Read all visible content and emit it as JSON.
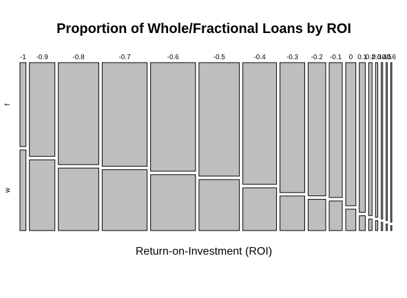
{
  "chart_data": {
    "type": "mosaic",
    "title": "Proportion of Whole/Fractional Loans by ROI",
    "xlabel": "Return-on-Investment (ROI)",
    "ylabel": "",
    "fill_color": "#bebebe",
    "stroke_color": "#000000",
    "y_categories": [
      "f",
      "w"
    ],
    "categories": [
      "-1",
      "-0.9",
      "-0.8",
      "-0.7",
      "-0.6",
      "-0.5",
      "-0.4",
      "-0.3",
      "-0.2",
      "-0.1",
      "0",
      "0.1",
      "0.2",
      "0.3",
      "0.4",
      "0.5",
      "0.6"
    ],
    "column_share": [
      0.016,
      0.068,
      0.108,
      0.12,
      0.12,
      0.108,
      0.09,
      0.066,
      0.047,
      0.035,
      0.027,
      0.016,
      0.009,
      0.006,
      0.004,
      0.003,
      0.003
    ],
    "f_fraction": [
      0.51,
      0.57,
      0.62,
      0.63,
      0.66,
      0.69,
      0.74,
      0.79,
      0.81,
      0.82,
      0.87,
      0.91,
      0.93,
      0.94,
      0.95,
      0.96,
      0.97
    ]
  }
}
